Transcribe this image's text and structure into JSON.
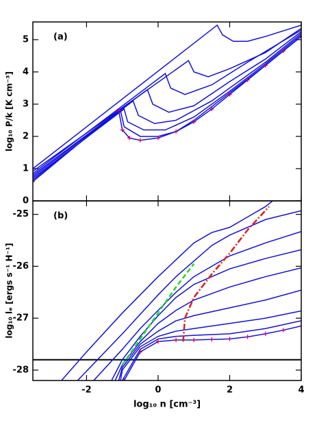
{
  "chart_data": [
    {
      "type": "line",
      "panel_label": "(a)",
      "y_label": "log₁₀ P/k  [K cm⁻³]",
      "xlim": [
        -3.5,
        4
      ],
      "ylim": [
        0,
        5.55
      ],
      "yticks": [
        0,
        1,
        2,
        3,
        4,
        5
      ],
      "series": [
        {
          "color": "#1010e0",
          "x": [
            -3.5,
            1.65,
            1.8,
            2.1,
            2.5,
            3,
            4
          ],
          "values": [
            1.0,
            5.45,
            5.15,
            4.95,
            4.95,
            5.1,
            5.45
          ]
        },
        {
          "color": "#1010e0",
          "x": [
            -3.5,
            0.85,
            1.0,
            1.4,
            2,
            3,
            4
          ],
          "values": [
            0.92,
            4.35,
            4.0,
            3.85,
            4.1,
            4.6,
            5.35
          ]
        },
        {
          "color": "#1010e0",
          "x": [
            -3.5,
            0.2,
            0.35,
            0.75,
            1.5,
            2.5,
            4
          ],
          "values": [
            0.85,
            3.95,
            3.5,
            3.3,
            3.6,
            4.3,
            5.3
          ]
        },
        {
          "color": "#1010e0",
          "x": [
            -3.5,
            -0.3,
            -0.15,
            0.3,
            1,
            2,
            3,
            4
          ],
          "values": [
            0.8,
            3.45,
            3.0,
            2.75,
            2.95,
            3.7,
            4.4,
            5.25
          ]
        },
        {
          "color": "#1010e0",
          "x": [
            -3.5,
            -0.7,
            -0.55,
            -0.1,
            0.5,
            1.5,
            3,
            4
          ],
          "values": [
            0.75,
            3.1,
            2.65,
            2.4,
            2.5,
            3.1,
            4.3,
            5.2
          ]
        },
        {
          "color": "#1010e0",
          "x": [
            -3.5,
            -0.95,
            -0.85,
            -0.4,
            0.2,
            1,
            2,
            3,
            4
          ],
          "values": [
            0.7,
            2.85,
            2.45,
            2.2,
            2.2,
            2.6,
            3.4,
            4.25,
            5.15
          ]
        },
        {
          "color": "#1010e0",
          "x": [
            -3.5,
            -1.05,
            -0.95,
            -0.5,
            0,
            0.5,
            1,
            2,
            3,
            4
          ],
          "values": [
            0.65,
            2.8,
            2.3,
            2.0,
            2.0,
            2.15,
            2.5,
            3.35,
            4.2,
            5.1
          ]
        },
        {
          "color": "#1010e0",
          "marker_color": "#cc0066",
          "x": [
            -3.5,
            -1.1,
            -1.0,
            -0.8,
            -0.5,
            0,
            0.5,
            1,
            1.5,
            2,
            2.5,
            3,
            3.5,
            4
          ],
          "values": [
            0.6,
            2.8,
            2.2,
            1.95,
            1.88,
            1.95,
            2.15,
            2.45,
            2.85,
            3.3,
            3.75,
            4.2,
            4.65,
            5.1
          ]
        }
      ]
    },
    {
      "type": "line",
      "panel_label": "(b)",
      "y_label": "log₁₀ lₑ [ergs s⁻¹ H⁻¹]",
      "x_label": "log₁₀ n  [cm⁻³]",
      "xlim": [
        -3.5,
        4
      ],
      "ylim": [
        -28.2,
        -24.74
      ],
      "xticks": [
        -2,
        0,
        2,
        4
      ],
      "yticks": [
        -25,
        -26,
        -27,
        -28
      ],
      "hline": {
        "value": -27.8,
        "color": "#000000"
      },
      "series": [
        {
          "color": "#1010e0",
          "x": [
            -2.7,
            -2,
            -1,
            0,
            1,
            1.5,
            2,
            2.5,
            3,
            3.2
          ],
          "values": [
            -28.2,
            -27.65,
            -26.9,
            -26.2,
            -25.55,
            -25.35,
            -25.25,
            -25.05,
            -24.85,
            -24.74
          ]
        },
        {
          "color": "#1010e0",
          "x": [
            -2.25,
            -1,
            0,
            0.5,
            1,
            1.5,
            2,
            3,
            4
          ],
          "values": [
            -28.2,
            -27.3,
            -26.55,
            -26.2,
            -25.9,
            -25.6,
            -25.4,
            -25.1,
            -24.93
          ]
        },
        {
          "color": "#1010e0",
          "x": [
            -1.8,
            -1,
            -0.5,
            0,
            0.5,
            1,
            1.5,
            2,
            3,
            4
          ],
          "values": [
            -28.2,
            -27.6,
            -27.2,
            -26.85,
            -26.5,
            -26.2,
            -26.0,
            -25.8,
            -25.55,
            -25.33
          ]
        },
        {
          "color": "#1010e0",
          "x": [
            -1.3,
            -1,
            -0.5,
            0,
            0.5,
            1,
            1.5,
            2,
            3,
            4
          ],
          "values": [
            -28.2,
            -27.8,
            -27.35,
            -26.95,
            -26.6,
            -26.35,
            -26.2,
            -26.05,
            -25.85,
            -25.68
          ]
        },
        {
          "color": "#1010e0",
          "x": [
            -1.2,
            -1,
            -0.5,
            0,
            0.5,
            1,
            2,
            3,
            4
          ],
          "values": [
            -28.2,
            -27.9,
            -27.45,
            -27.1,
            -26.85,
            -26.65,
            -26.4,
            -26.2,
            -26.03
          ]
        },
        {
          "color": "#1010e0",
          "x": [
            -1.1,
            -1,
            -0.5,
            0,
            0.5,
            1,
            2,
            3,
            4
          ],
          "values": [
            -28.2,
            -27.95,
            -27.5,
            -27.25,
            -27.05,
            -26.95,
            -26.8,
            -26.65,
            -26.46
          ]
        },
        {
          "color": "#1010e0",
          "x": [
            -1.05,
            -1,
            -0.5,
            0,
            0.5,
            1,
            2,
            3,
            4
          ],
          "values": [
            -28.2,
            -28.0,
            -27.55,
            -27.35,
            -27.25,
            -27.2,
            -27.1,
            -27.0,
            -26.86
          ]
        },
        {
          "color": "#1010e0",
          "x": [
            -1.0,
            -0.5,
            0,
            0.5,
            1,
            2,
            3,
            4
          ],
          "values": [
            -28.2,
            -27.6,
            -27.4,
            -27.35,
            -27.33,
            -27.3,
            -27.2,
            -27.05
          ]
        },
        {
          "color": "#1010e0",
          "marker_color": "#cc0066",
          "x": [
            -0.95,
            -0.5,
            0,
            0.5,
            1,
            1.5,
            2,
            2.5,
            3,
            3.5,
            4
          ],
          "values": [
            -28.2,
            -27.65,
            -27.45,
            -27.42,
            -27.42,
            -27.41,
            -27.4,
            -27.36,
            -27.3,
            -27.23,
            -27.15
          ]
        },
        {
          "color": "#22dd22",
          "dash": "dashed",
          "x": [
            -1,
            -0.5,
            0,
            0.5,
            1
          ],
          "values": [
            -27.9,
            -27.4,
            -26.9,
            -26.4,
            -25.95
          ]
        },
        {
          "color": "#e02020",
          "dash": "dashdot",
          "x": [
            0.7,
            0.75,
            1,
            1.5,
            2,
            2.5,
            3.1
          ],
          "values": [
            -27.45,
            -27.0,
            -26.6,
            -26.15,
            -25.75,
            -25.3,
            -24.85
          ]
        }
      ]
    }
  ]
}
